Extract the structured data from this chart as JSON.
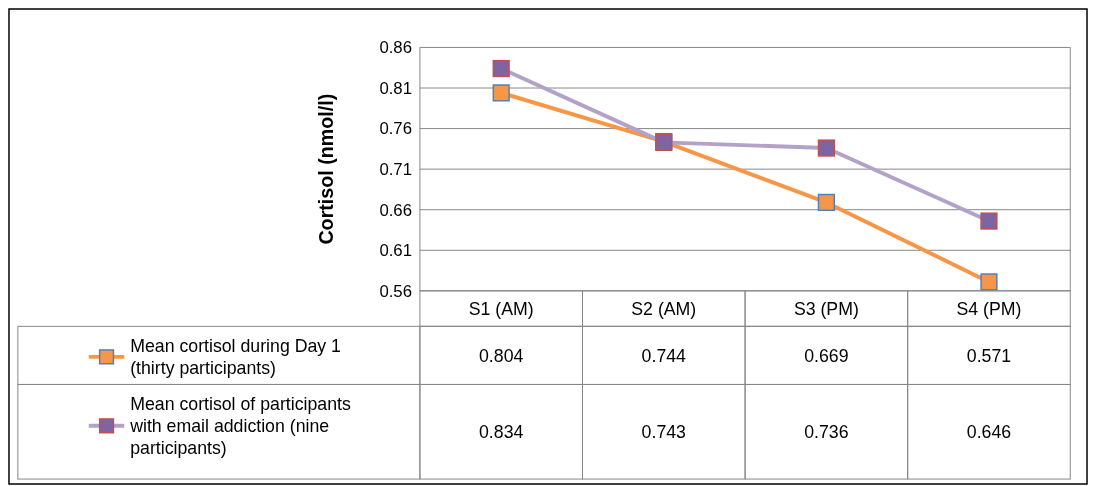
{
  "chart_data": {
    "type": "line",
    "ylabel": "Cortisol (nmol/l)",
    "categories": [
      "S1 (AM)",
      "S2 (AM)",
      "S3 (PM)",
      "S4 (PM)"
    ],
    "series": [
      {
        "name": "Mean cortisol during Day 1 (thirty participants)",
        "color": "#f79646",
        "values": [
          0.804,
          0.744,
          0.669,
          0.571
        ]
      },
      {
        "name": "Mean cortisol of participants with email addiction (nine participants)",
        "color": "#b3a2c7",
        "values": [
          0.834,
          0.743,
          0.736,
          0.646
        ]
      }
    ],
    "ylim": [
      0.56,
      0.86
    ],
    "yticks": [
      0.56,
      0.61,
      0.66,
      0.71,
      0.76,
      0.81,
      0.86
    ],
    "grid": "y",
    "marker": "square",
    "data_labels": true,
    "legend": "bottom left"
  }
}
